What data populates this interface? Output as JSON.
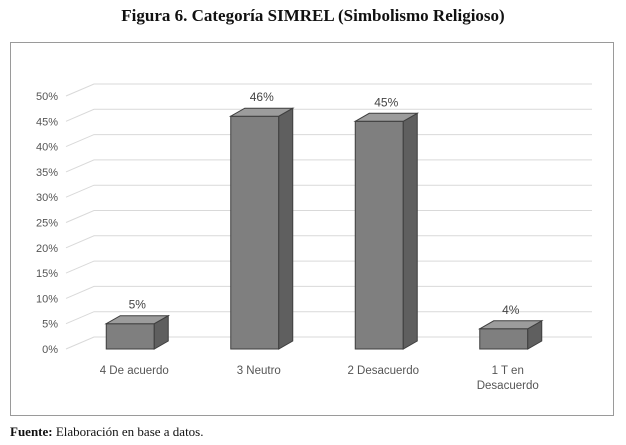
{
  "title": "Figura 6. Categoría SIMREL (Simbolismo Religioso)",
  "source": {
    "label": "Fuente:",
    "text": "Elaboración en base a datos."
  },
  "chart_data": {
    "type": "bar",
    "title": "",
    "categories": [
      "4 De acuerdo",
      "3 Neutro",
      "2 Desacuerdo",
      "1 T en Desacuerdo"
    ],
    "category_lines": [
      [
        "4 De acuerdo"
      ],
      [
        "3 Neutro"
      ],
      [
        "2 Desacuerdo"
      ],
      [
        "1 T en",
        "Desacuerdo"
      ]
    ],
    "values": [
      5,
      46,
      45,
      4
    ],
    "value_labels": [
      "5%",
      "46%",
      "45%",
      "4%"
    ],
    "yticks": [
      "0%",
      "5%",
      "10%",
      "15%",
      "20%",
      "25%",
      "30%",
      "35%",
      "40%",
      "45%",
      "50%"
    ],
    "ylim": [
      0,
      50
    ],
    "grid": true,
    "style": "3d",
    "bar_color": "#808080"
  }
}
